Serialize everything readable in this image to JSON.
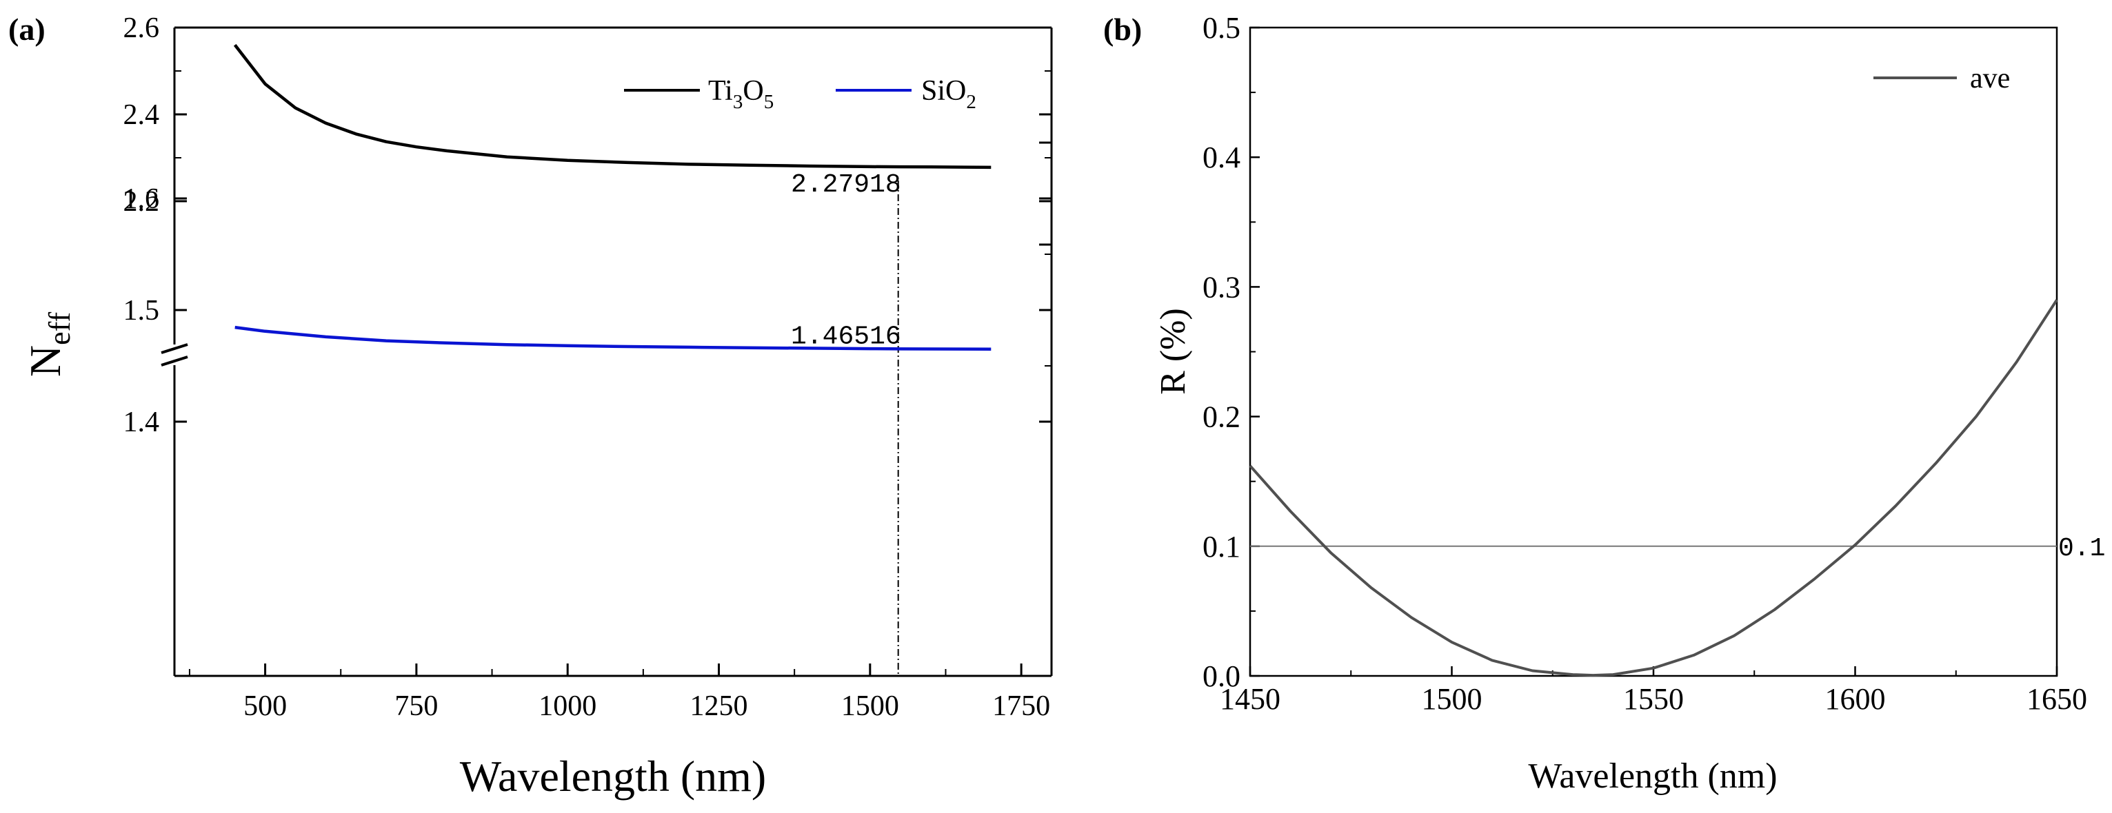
{
  "chart_data": [
    {
      "panel": "(a)",
      "type": "line",
      "xlabel": "Wavelength (nm)",
      "ylabel": {
        "main": "N",
        "sub": "eff"
      },
      "xlim": [
        350,
        1800
      ],
      "x_ticks": [
        500,
        750,
        1000,
        1250,
        1500,
        1750
      ],
      "y_axis_break": true,
      "ylim_upper": [
        2.1,
        2.6
      ],
      "ylim_lower": [
        1.35,
        1.65
      ],
      "y_ticks_upper": [
        2.2,
        2.4,
        2.6
      ],
      "y_ticks_lower": [
        1.4,
        1.5,
        1.6
      ],
      "y_tick_labels_upper": [
        "2.2",
        "2.4",
        "2.6"
      ],
      "y_tick_labels_lower": [
        "1.4",
        "1.5",
        "1.6"
      ],
      "marker_wavelength": 1550,
      "legend": {
        "position": "top-right"
      },
      "series": [
        {
          "name": "Ti3O5",
          "legend_base": "Ti",
          "legend_sub1": "3",
          "legend_mid": "O",
          "legend_sub2": "5",
          "color": "#000000",
          "x": [
            450,
            500,
            550,
            600,
            650,
            700,
            750,
            800,
            900,
            1000,
            1100,
            1200,
            1300,
            1400,
            1500,
            1550,
            1600,
            1700
          ],
          "values": [
            2.56,
            2.47,
            2.415,
            2.38,
            2.355,
            2.337,
            2.325,
            2.316,
            2.302,
            2.294,
            2.289,
            2.285,
            2.283,
            2.281,
            2.2795,
            2.27918,
            2.279,
            2.278
          ]
        },
        {
          "name": "SiO2",
          "legend_base": "SiO",
          "legend_sub1": "2",
          "color": "#0a14d2",
          "x": [
            450,
            500,
            600,
            700,
            800,
            900,
            1000,
            1100,
            1200,
            1300,
            1400,
            1500,
            1550,
            1600,
            1700
          ],
          "values": [
            1.4845,
            1.481,
            1.476,
            1.4725,
            1.4705,
            1.469,
            1.468,
            1.4673,
            1.4667,
            1.4662,
            1.4658,
            1.4654,
            1.46516,
            1.4651,
            1.465
          ]
        }
      ],
      "annotations": [
        {
          "text": "2.27918",
          "series": "Ti3O5",
          "at_value": 2.27918
        },
        {
          "text": "1.46516",
          "series": "SiO2",
          "at_value": 1.46516
        }
      ]
    },
    {
      "panel": "(b)",
      "type": "line",
      "xlabel": "Wavelength (nm)",
      "ylabel": "R (%)",
      "xlim": [
        1450,
        1650
      ],
      "ylim": [
        0,
        0.5
      ],
      "x_ticks": [
        1450,
        1500,
        1550,
        1600,
        1650
      ],
      "y_ticks": [
        0.0,
        0.1,
        0.2,
        0.3,
        0.4,
        0.5
      ],
      "y_tick_labels": [
        "0.0",
        "0.1",
        "0.2",
        "0.3",
        "0.4",
        "0.5"
      ],
      "legend": {
        "position": "top-right"
      },
      "reference_line": {
        "value": 0.1,
        "label": "0.1"
      },
      "series": [
        {
          "name": "ave",
          "color": "#505050",
          "x": [
            1450,
            1460,
            1470,
            1480,
            1490,
            1500,
            1510,
            1520,
            1530,
            1535,
            1540,
            1550,
            1560,
            1570,
            1580,
            1590,
            1600,
            1610,
            1620,
            1630,
            1640,
            1650
          ],
          "values": [
            0.162,
            0.127,
            0.095,
            0.068,
            0.045,
            0.026,
            0.012,
            0.004,
            0.001,
            0.0005,
            0.001,
            0.006,
            0.016,
            0.031,
            0.051,
            0.075,
            0.101,
            0.131,
            0.164,
            0.2,
            0.242,
            0.29
          ]
        }
      ]
    }
  ]
}
